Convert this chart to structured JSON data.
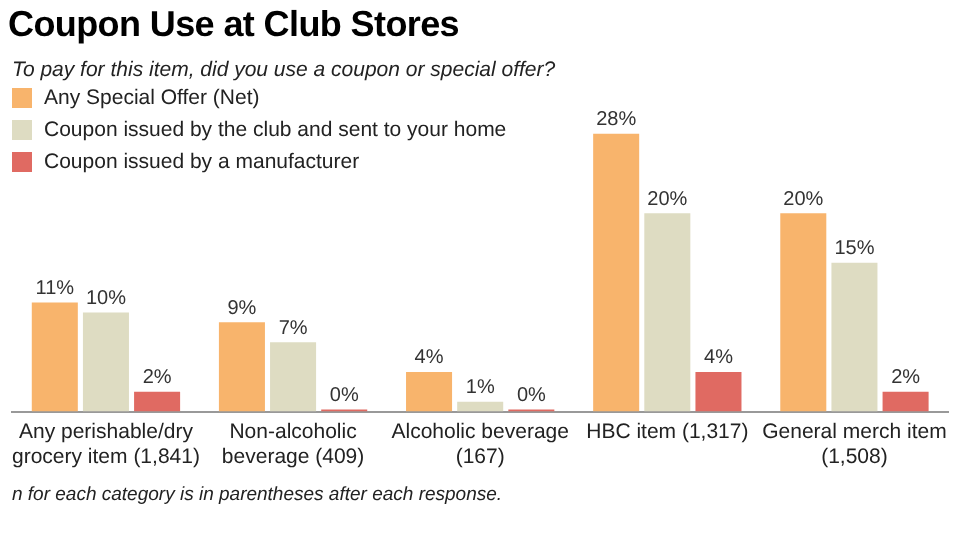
{
  "chart_data": {
    "type": "bar",
    "title": "Coupon Use at Club Stores",
    "subtitle": "To pay for this item, did you use a coupon or special offer?",
    "categories": [
      "Any perishable/dry grocery item (1,841)",
      "Non-alcoholic beverage (409)",
      "Alcoholic beverage (167)",
      "HBC item (1,317)",
      "General merch item (1,508)"
    ],
    "series": [
      {
        "name": "Any Special Offer (Net)",
        "color": "#f8b46c",
        "values": [
          11,
          9,
          4,
          28,
          20
        ],
        "value_labels": [
          "11%",
          "9%",
          "4%",
          "28%",
          "20%"
        ]
      },
      {
        "name": "Coupon issued by the club and sent to your home",
        "color": "#dedcc2",
        "values": [
          10,
          7,
          1,
          20,
          15
        ],
        "value_labels": [
          "10%",
          "7%",
          "1%",
          "20%",
          "15%"
        ]
      },
      {
        "name": "Coupon issued by a manufacturer",
        "color": "#e06a62",
        "values": [
          2,
          0,
          0,
          4,
          2
        ],
        "value_labels": [
          "2%",
          "0%",
          "0%",
          "4%",
          "2%"
        ]
      }
    ],
    "legend": "top left",
    "grid": false,
    "annotations": [
      "n for each category is in parentheses after each response."
    ]
  }
}
